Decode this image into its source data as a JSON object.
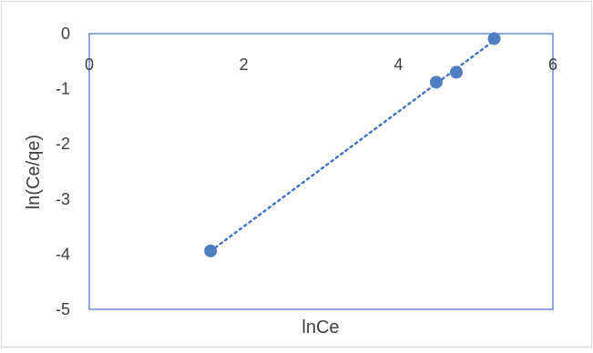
{
  "chart_data": {
    "type": "scatter",
    "title": "",
    "xlabel": "lnCe",
    "ylabel": "ln(Ce/qe)",
    "xlim": [
      0,
      6
    ],
    "ylim": [
      -5,
      0
    ],
    "xticks": [
      "0",
      "2",
      "4",
      "6"
    ],
    "yticks": [
      "0",
      "-1",
      "-2",
      "-3",
      "-4",
      "-5"
    ],
    "grid": false,
    "legend": "none",
    "series": [
      {
        "points": [
          {
            "x": 1.57,
            "y": -3.94
          },
          {
            "x": 4.49,
            "y": -0.88
          },
          {
            "x": 4.75,
            "y": -0.7
          },
          {
            "x": 5.24,
            "y": -0.09
          }
        ],
        "marker_color": "#4f7fc2",
        "trendline": {
          "style": "dotted",
          "color": "#4472c4",
          "from_x": 1.57,
          "to_x": 5.24
        }
      }
    ]
  }
}
